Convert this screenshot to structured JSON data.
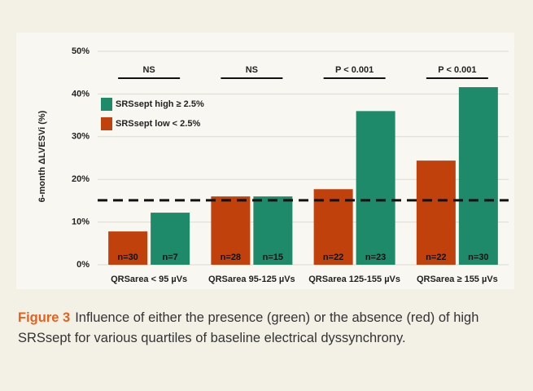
{
  "chart_data": {
    "type": "bar",
    "y_label": "6-month ΔLVESVi (%)",
    "categories": [
      "QRSarea < 95 µVs",
      "QRSarea 95-125 µVs",
      "QRSarea 125-155 µVs",
      "QRSarea ≥ 155 µVs"
    ],
    "series": [
      {
        "name": "SRSsept low < 2.5%",
        "color": "#c0410b",
        "values": [
          7.8,
          16,
          17.7,
          24.4
        ],
        "counts": [
          "n=30",
          "n=28",
          "n=22",
          "n=22"
        ]
      },
      {
        "name": "SRSsept high ≥ 2.5%",
        "color": "#1e8a6a",
        "values": [
          12.2,
          16,
          36,
          41.6
        ],
        "counts": [
          "n=7",
          "n=15",
          "n=23",
          "n=30"
        ]
      }
    ],
    "significance": [
      "NS",
      "NS",
      "P < 0.001",
      "P < 0.001"
    ],
    "reference_line": 15.1,
    "ylim": [
      0,
      50
    ],
    "yticks": [
      {
        "value": 0,
        "label": "0%"
      },
      {
        "value": 10,
        "label": "10%"
      },
      {
        "value": 20,
        "label": "20%"
      },
      {
        "value": 30,
        "label": "30%"
      },
      {
        "value": 40,
        "label": "40%"
      },
      {
        "value": 50,
        "label": "50%"
      }
    ],
    "grid": true
  },
  "caption": {
    "label": "Figure 3",
    "text": "Influence of either the presence (green) or the absence (red) of high SRSsept for various quartiles of baseline electrical dyssynchrony."
  }
}
